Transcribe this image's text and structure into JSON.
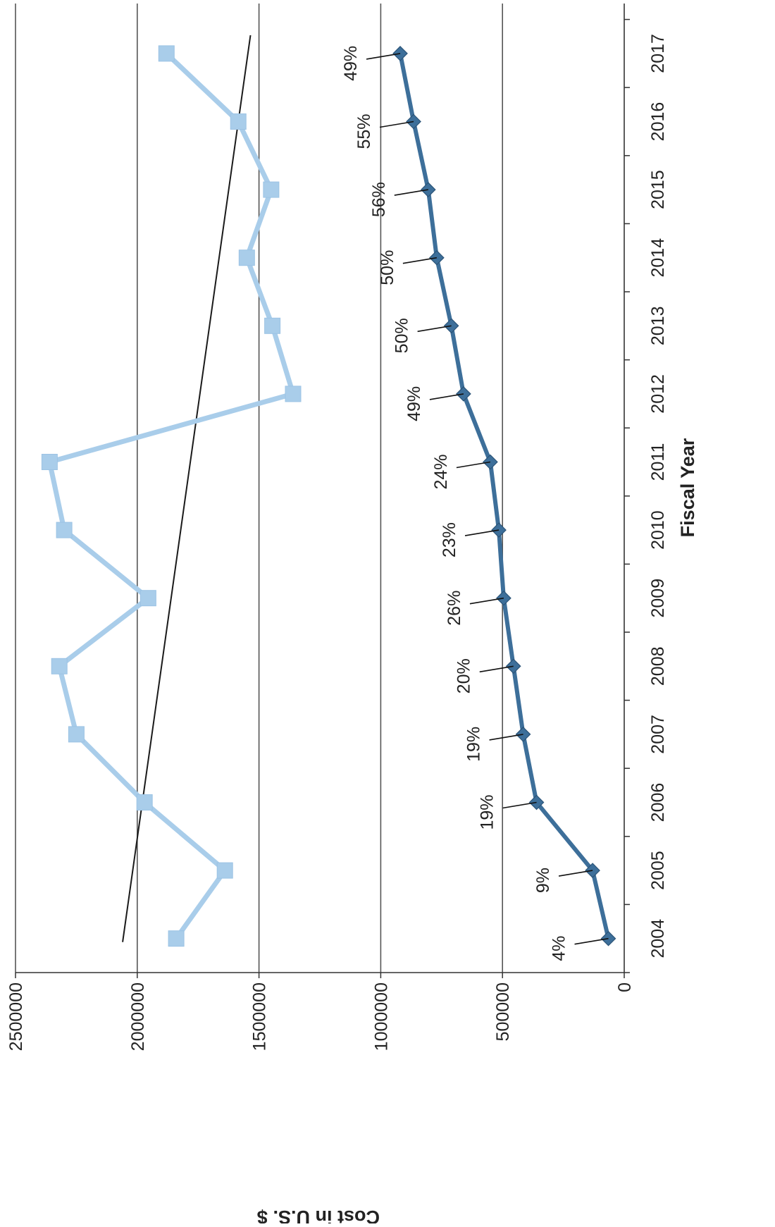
{
  "chart_data": {
    "type": "line",
    "orientation": "rotated-90-clockwise",
    "xlabel": "Fiscal Year",
    "ylabel": "Cost in U.S. $",
    "categories": [
      "2004",
      "2005",
      "2006",
      "2007",
      "2008",
      "2009",
      "2010",
      "2011",
      "2012",
      "2013",
      "2014",
      "2015",
      "2016",
      "2017"
    ],
    "ylim": [
      0,
      2500000
    ],
    "yticks": [
      "0",
      "500000",
      "1000000",
      "1500000",
      "2000000",
      "2500000"
    ],
    "grid": "major y gridlines",
    "legend": "none",
    "series": [
      {
        "style": "square-markers",
        "color": "#a9cdea",
        "values": [
          1840000,
          1640000,
          1970000,
          2250000,
          2320000,
          1955000,
          2300000,
          2360000,
          1360000,
          1445000,
          1550000,
          1450000,
          1585000,
          1880000
        ]
      },
      {
        "style": "diamond-markers",
        "color": "#3d6f9a",
        "values": [
          65000,
          130000,
          360000,
          415000,
          455000,
          495000,
          515000,
          550000,
          660000,
          710000,
          770000,
          805000,
          865000,
          920000
        ],
        "data_labels": [
          "4%",
          "9%",
          "19%",
          "19%",
          "20%",
          "26%",
          "23%",
          "24%",
          "49%",
          "50%",
          "50%",
          "56%",
          "55%",
          "49%"
        ]
      }
    ],
    "trendline": {
      "applies_to": "square-markers",
      "color": "#1a1a1a",
      "start": 2060000,
      "end": 1535000
    }
  }
}
